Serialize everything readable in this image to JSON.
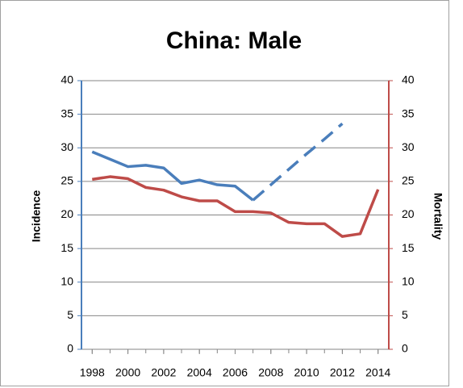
{
  "chart_data": {
    "type": "line",
    "title": "China: Male",
    "x": [
      1998,
      1999,
      2000,
      2001,
      2002,
      2003,
      2004,
      2005,
      2006,
      2007,
      2008,
      2009,
      2010,
      2011,
      2012,
      2013,
      2014
    ],
    "xlim": [
      1997.4,
      2014.6
    ],
    "xticks": [
      1998,
      2000,
      2002,
      2004,
      2006,
      2008,
      2010,
      2012,
      2014
    ],
    "ylabel": "Incidence",
    "y2label": "Mortality",
    "ylim": [
      0,
      40
    ],
    "yticks": [
      0,
      5,
      10,
      15,
      20,
      25,
      30,
      35,
      40
    ],
    "y2lim": [
      0,
      40
    ],
    "y2ticks": [
      0,
      5,
      10,
      15,
      20,
      25,
      30,
      35,
      40
    ],
    "grid": true,
    "series": [
      {
        "name": "Incidence",
        "color": "#4a7ebb",
        "dashed_from": 2007,
        "values": [
          29.4,
          28.3,
          27.2,
          27.4,
          27.0,
          24.7,
          25.2,
          24.5,
          24.3,
          22.2,
          24.5,
          26.8,
          29.1,
          31.3,
          33.6,
          null,
          null
        ]
      },
      {
        "name": "Mortality",
        "color": "#be4b48",
        "axis": "y2",
        "values": [
          25.3,
          25.7,
          25.4,
          24.1,
          23.7,
          22.7,
          22.1,
          22.1,
          20.5,
          20.5,
          20.3,
          18.9,
          18.7,
          18.7,
          16.8,
          17.2,
          23.8
        ]
      }
    ]
  }
}
